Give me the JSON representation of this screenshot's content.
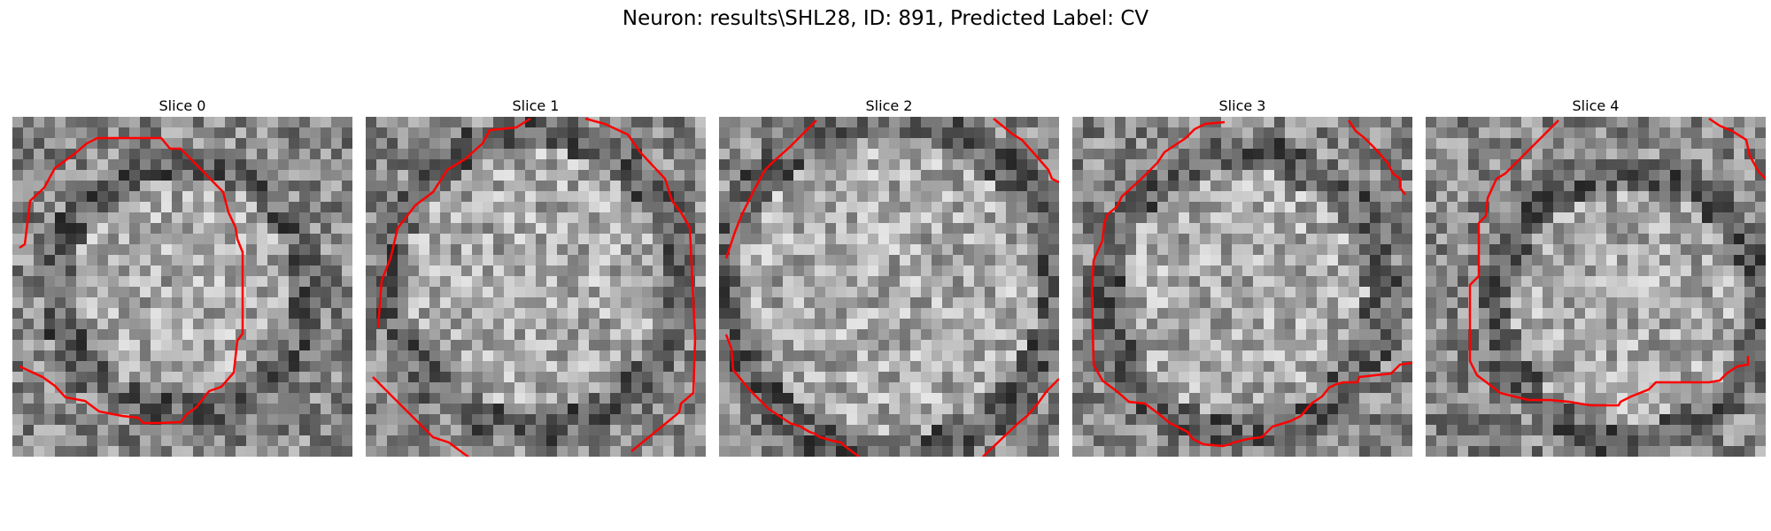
{
  "figure": {
    "title": "Neuron: results\\SHL28, ID: 891, Predicted Label: CV"
  },
  "contour_color": "#ff0000",
  "image_colormap": "gray",
  "slices": [
    {
      "label": "Slice 0"
    },
    {
      "label": "Slice 1"
    },
    {
      "label": "Slice 2"
    },
    {
      "label": "Slice 3"
    },
    {
      "label": "Slice 4"
    }
  ]
}
